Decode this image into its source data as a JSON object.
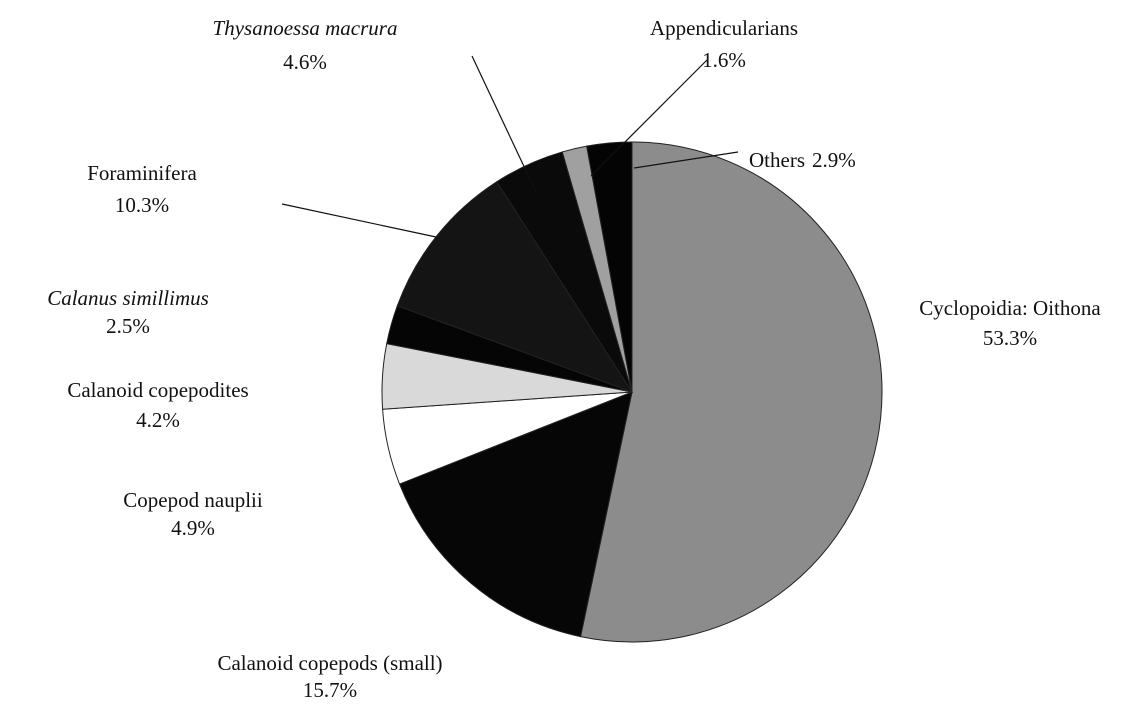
{
  "chart_data": {
    "type": "pie",
    "categories": [
      "Cyclopoidia: Oithona",
      "Calanoid copepods (small)",
      "Copepod nauplii",
      "Calanoid copepodites",
      "Calanus simillimus",
      "Foraminifera",
      "Thysanoessa macrura",
      "Appendicularians",
      "Others"
    ],
    "values": [
      53.3,
      15.7,
      4.9,
      4.2,
      2.5,
      10.3,
      4.6,
      1.6,
      2.9
    ],
    "value_labels": [
      "53.3%",
      "15.7%",
      "4.9%",
      "4.2%",
      "2.5%",
      "10.3%",
      "4.6%",
      "1.6%",
      "2.9%"
    ],
    "colors": [
      "#8c8c8c",
      "#060606",
      "#ffffff",
      "#d9d9d9",
      "#050505",
      "#141414",
      "#0a0a0a",
      "#a0a0a0",
      "#040404"
    ]
  }
}
